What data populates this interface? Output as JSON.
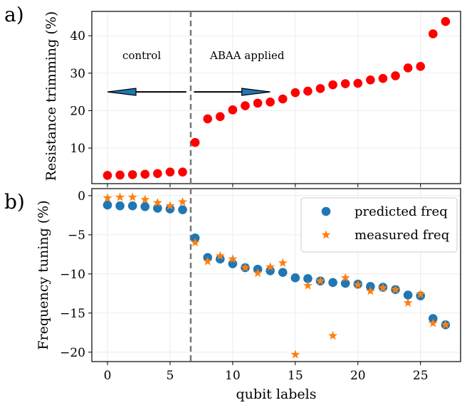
{
  "chart_data": [
    {
      "panel_label": "a)",
      "type": "scatter",
      "ylabel": "Resistance trimming (%)",
      "xlim": [
        -1.25,
        28.2
      ],
      "ylim": [
        0.5,
        46.5
      ],
      "yticks": [
        10,
        20,
        30,
        40
      ],
      "grid": true,
      "split_x": 6.65,
      "annotations": {
        "left": "control",
        "right": "ABAA applied"
      },
      "arrows": {
        "left_from": 6.3,
        "left_to": 0,
        "right_from": 6.9,
        "right_to": 13,
        "y": 25
      },
      "marker_color": "#ff0000",
      "series": [
        {
          "x": [
            0,
            1,
            2,
            3,
            4,
            5,
            6,
            7,
            8,
            9,
            10,
            11,
            12,
            13,
            14,
            15,
            16,
            17,
            18,
            19,
            20,
            21,
            22,
            23,
            24,
            25,
            26,
            27
          ],
          "values": [
            2.7,
            2.8,
            2.9,
            3.0,
            3.2,
            3.6,
            3.6,
            11.5,
            17.8,
            18.4,
            20.2,
            21.3,
            22.0,
            22.3,
            23.1,
            24.8,
            25.2,
            25.9,
            26.9,
            27.2,
            27.3,
            28.2,
            28.6,
            29.3,
            31.4,
            31.8,
            40.5,
            43.8
          ]
        }
      ]
    },
    {
      "panel_label": "b)",
      "type": "scatter",
      "xlabel": "qubit labels",
      "ylabel": "Frequency tuning (%)",
      "xlim": [
        -1.25,
        28.2
      ],
      "ylim": [
        -21.2,
        0.9
      ],
      "xticks": [
        0,
        5,
        10,
        15,
        20,
        25
      ],
      "yticks": [
        0,
        -5,
        -10,
        -15,
        -20
      ],
      "grid": true,
      "legend_position": "top-right",
      "split_x": 6.65,
      "series": [
        {
          "name": "predicted freq",
          "marker": "circle",
          "color": "#1f77b4",
          "x": [
            0,
            1,
            2,
            3,
            4,
            5,
            6,
            7,
            8,
            9,
            10,
            11,
            12,
            13,
            14,
            15,
            16,
            17,
            18,
            19,
            20,
            21,
            22,
            23,
            24,
            25,
            26,
            27
          ],
          "values": [
            -1.2,
            -1.3,
            -1.3,
            -1.4,
            -1.6,
            -1.7,
            -1.8,
            -5.4,
            -7.9,
            -8.1,
            -8.7,
            -9.2,
            -9.4,
            -9.6,
            -9.8,
            -10.5,
            -10.6,
            -10.9,
            -11.1,
            -11.2,
            -11.3,
            -11.6,
            -11.7,
            -12.0,
            -12.7,
            -12.8,
            -15.7,
            -16.5
          ]
        },
        {
          "name": "measured freq",
          "marker": "star",
          "color": "#ff7f0e",
          "x": [
            0,
            1,
            2,
            3,
            4,
            5,
            6,
            7,
            8,
            9,
            10,
            11,
            12,
            13,
            14,
            15,
            16,
            17,
            18,
            19,
            20,
            21,
            22,
            23,
            24,
            25,
            26,
            27
          ],
          "values": [
            -0.3,
            -0.2,
            -0.2,
            -0.5,
            -0.9,
            -1.3,
            -0.8,
            -6.0,
            -8.4,
            -7.7,
            -8.1,
            -9.2,
            -9.9,
            -9.1,
            -8.6,
            -20.3,
            -11.5,
            -10.9,
            -17.9,
            -10.5,
            -11.4,
            -12.2,
            -11.8,
            -12.0,
            -13.7,
            -12.6,
            -16.3,
            -16.5
          ]
        }
      ]
    }
  ]
}
